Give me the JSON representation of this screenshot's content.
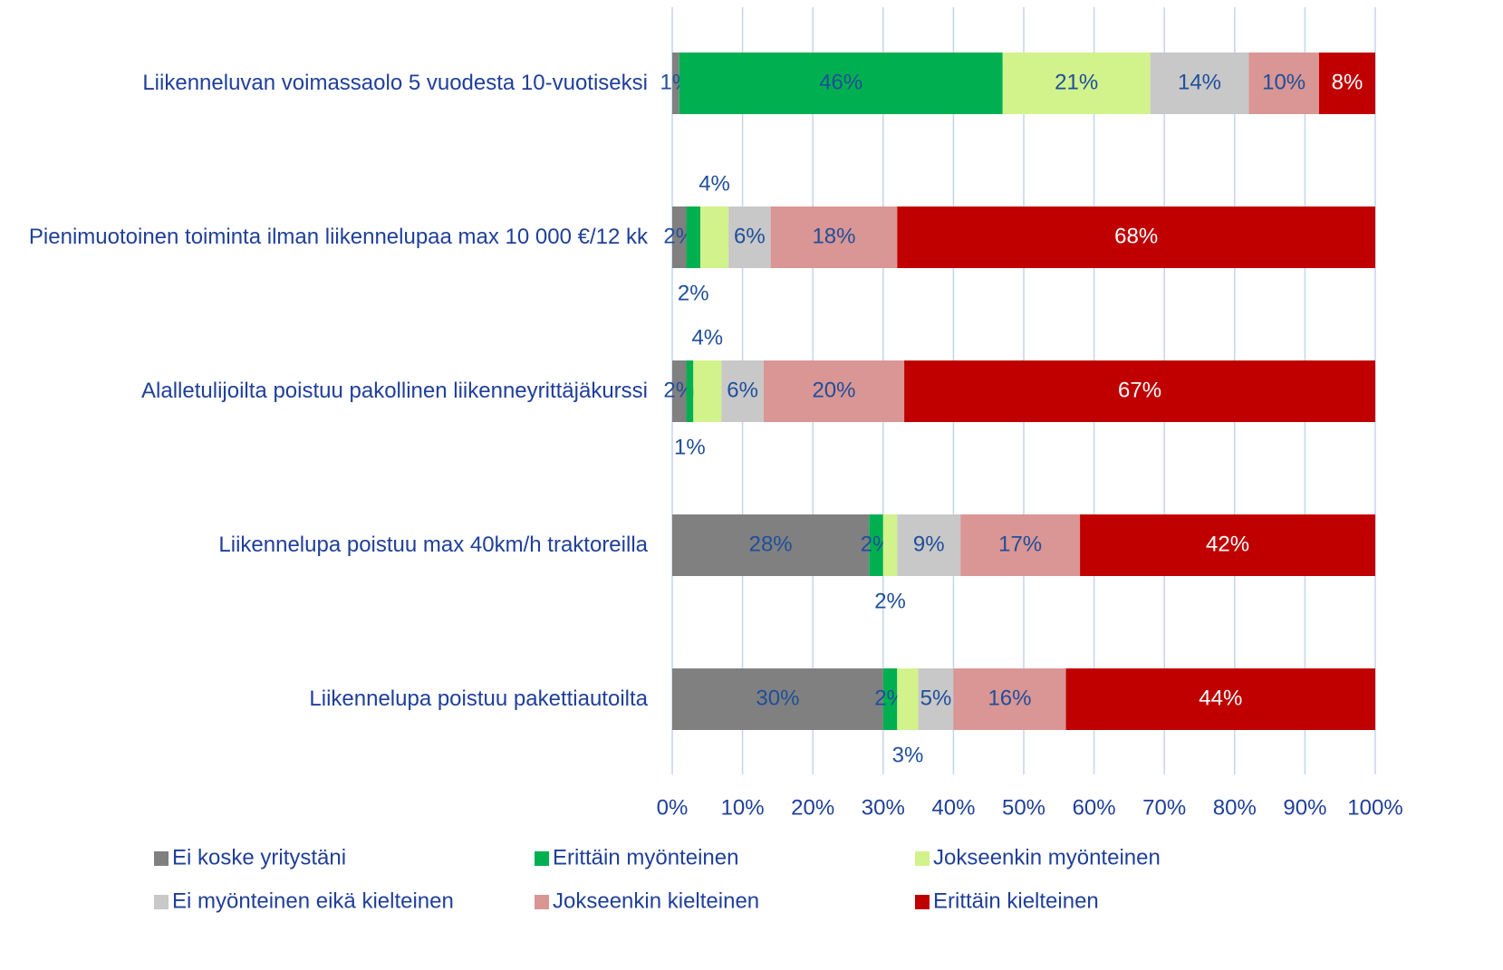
{
  "chart_data": {
    "type": "stacked_bar_horizontal",
    "categories": [
      "Liikenneluvan voimassaolo 5 vuodesta 10-vuotiseksi",
      "Pienimuotoinen toiminta ilman liikennelupaa max 10 000 €/12 kk",
      "Alalletulijoilta poistuu pakollinen liikenneyrittäjäkurssi",
      "Liikennelupa poistuu max 40km/h traktoreilla",
      "Liikennelupa poistuu pakettiautoilta"
    ],
    "series": [
      {
        "name": "Ei koske yritystäni",
        "color": "#808080",
        "values": [
          1,
          2,
          2,
          28,
          30
        ],
        "value_labels": [
          "1%",
          "2%",
          "2%",
          "28%",
          "30%"
        ]
      },
      {
        "name": "Erittäin myönteinen",
        "color": "#00b050",
        "values": [
          46,
          2,
          1,
          2,
          2
        ],
        "value_labels": [
          "46%",
          "2%",
          "1%",
          "2%",
          "2%"
        ]
      },
      {
        "name": "Jokseenkin myönteinen",
        "color": "#d2f28c",
        "values": [
          21,
          4,
          4,
          2,
          3
        ],
        "value_labels": [
          "21%",
          "4%",
          "4%",
          "2%",
          "3%"
        ]
      },
      {
        "name": "Ei myönteinen eikä kielteinen",
        "color": "#c8c8c8",
        "values": [
          14,
          6,
          6,
          9,
          5
        ],
        "value_labels": [
          "14%",
          "6%",
          "6%",
          "9%",
          "5%"
        ]
      },
      {
        "name": "Jokseenkin kielteinen",
        "color": "#d99694",
        "values": [
          10,
          18,
          20,
          17,
          16
        ],
        "value_labels": [
          "10%",
          "18%",
          "20%",
          "17%",
          "16%"
        ]
      },
      {
        "name": "Erittäin kielteinen",
        "color": "#c00000",
        "values": [
          8,
          68,
          67,
          42,
          44
        ],
        "value_labels": [
          "8%",
          "68%",
          "67%",
          "42%",
          "44%"
        ]
      }
    ],
    "xlim": [
      0,
      100
    ],
    "xticks": [
      {
        "value": 0,
        "label": "0%"
      },
      {
        "value": 10,
        "label": "10%"
      },
      {
        "value": 20,
        "label": "20%"
      },
      {
        "value": 30,
        "label": "30%"
      },
      {
        "value": 40,
        "label": "40%"
      },
      {
        "value": 50,
        "label": "50%"
      },
      {
        "value": 60,
        "label": "60%"
      },
      {
        "value": 70,
        "label": "70%"
      },
      {
        "value": 80,
        "label": "80%"
      },
      {
        "value": 90,
        "label": "90%"
      },
      {
        "value": 100,
        "label": "100%"
      }
    ],
    "grid": true,
    "legend": "bottom"
  }
}
